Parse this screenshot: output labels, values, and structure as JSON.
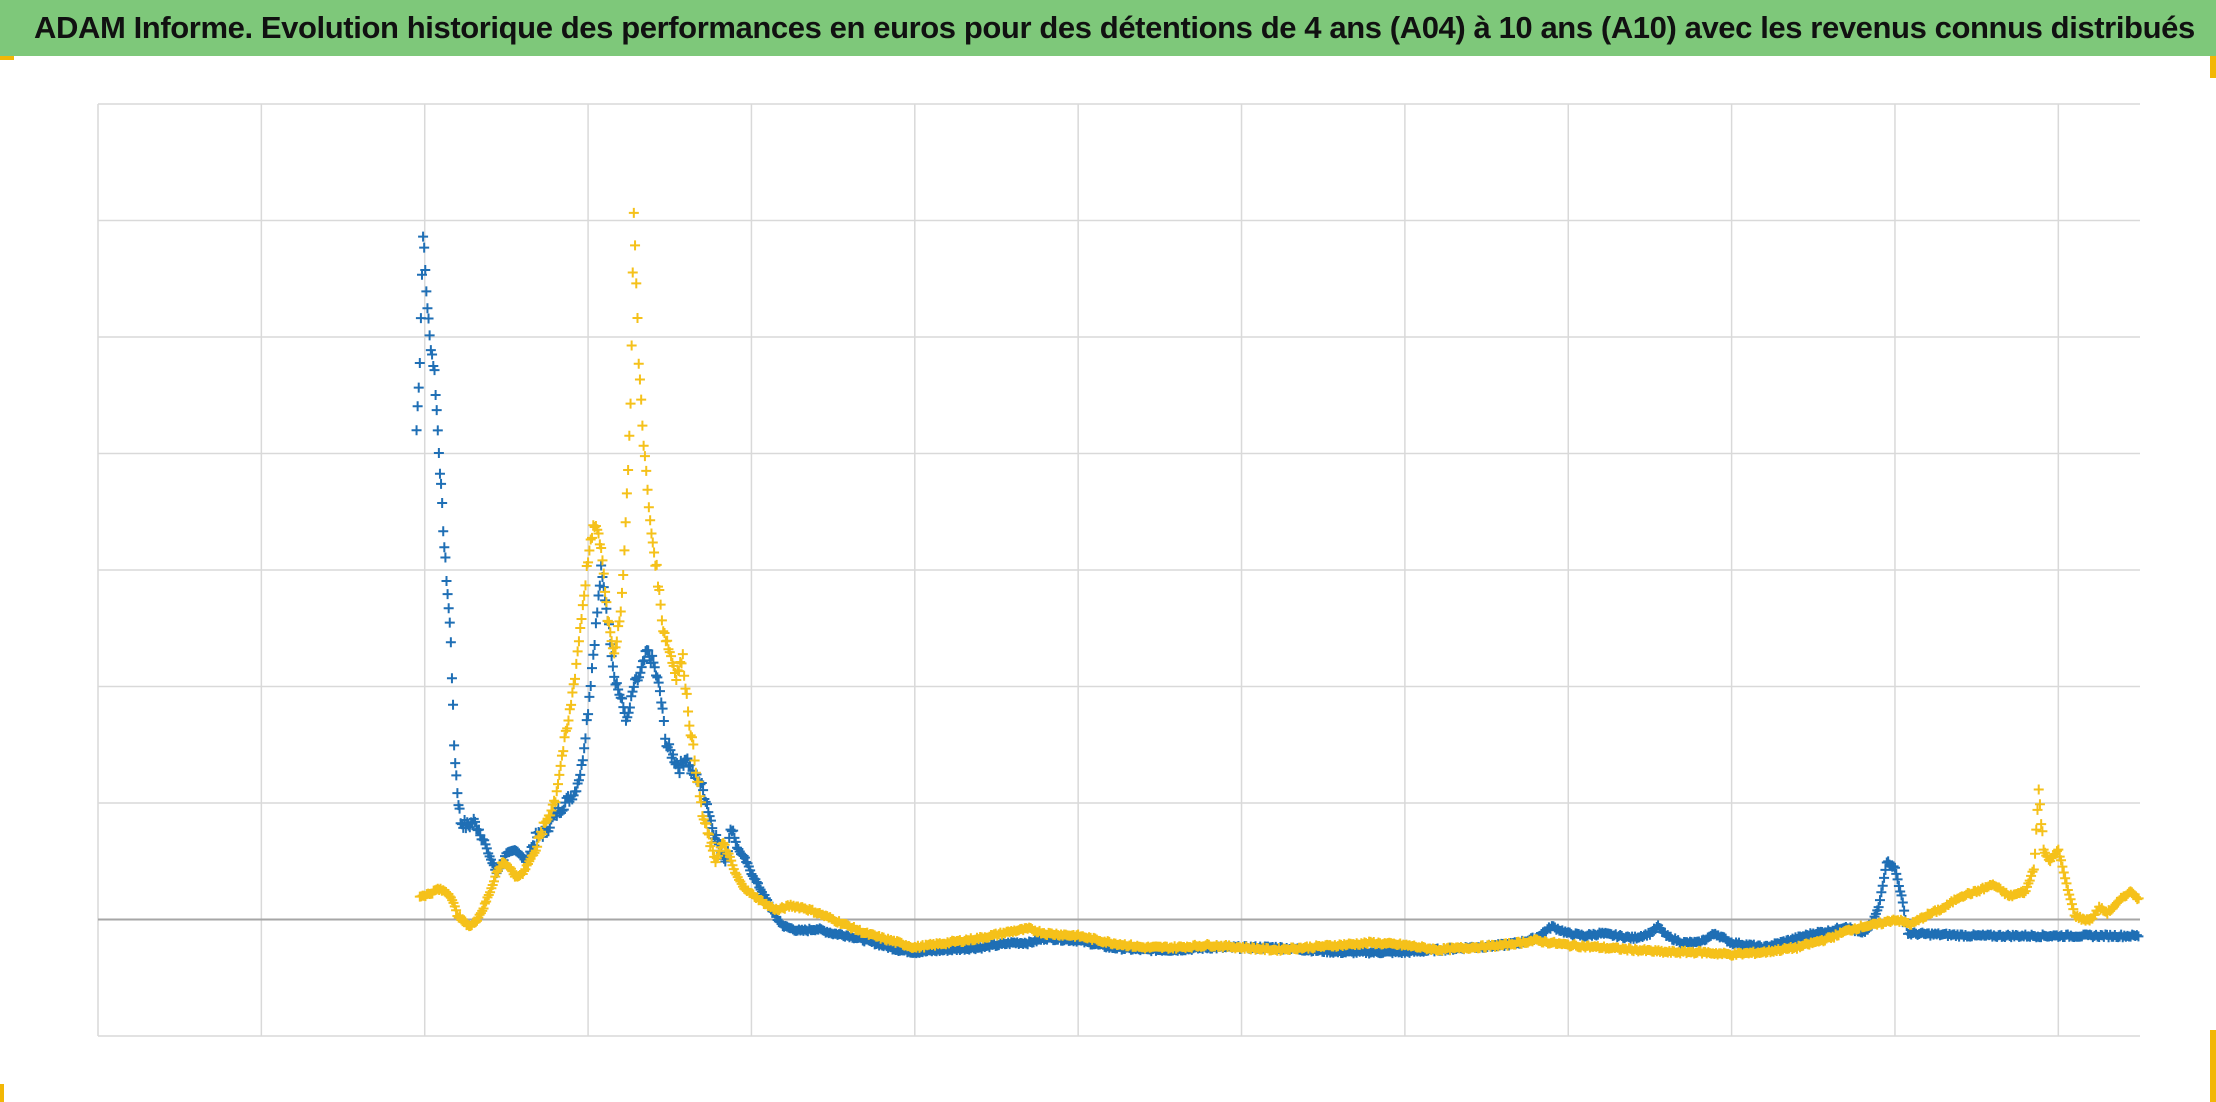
{
  "title": "ADAM Informe. Evolution historique des performances en euros pour des détentions de 4 ans (A04) à 10 ans (A10) avec les revenus connus distribués",
  "colors": {
    "title_background": "#7ec87a",
    "corner_accent": "#f2b705",
    "series_blue": "#1f6fb5",
    "series_yellow": "#f5c11a",
    "grid": "#d9d9d9",
    "zero_line": "#a6a6a6"
  },
  "chart_data": {
    "type": "scatter",
    "marker": "plus",
    "grid": true,
    "legend": "none",
    "xlim": [
      0,
      1250
    ],
    "ylim": [
      -0.5,
      3.5
    ],
    "x_gridlines": [
      0,
      100,
      200,
      300,
      400,
      500,
      600,
      700,
      800,
      900,
      1000,
      1100,
      1200
    ],
    "y_gridlines": [
      0,
      0.5,
      1,
      1.5,
      2,
      2.5,
      3,
      3.5
    ],
    "series": [
      {
        "color": "#1f6fb5",
        "anchors": [
          [
            195,
            2.1
          ],
          [
            197,
            2.4
          ],
          [
            199,
            2.95
          ],
          [
            201,
            2.7
          ],
          [
            203,
            2.5
          ],
          [
            206,
            2.35
          ],
          [
            208,
            2.1
          ],
          [
            210,
            1.85
          ],
          [
            212,
            1.6
          ],
          [
            214,
            1.4
          ],
          [
            216,
            1.2
          ],
          [
            218,
            0.75
          ],
          [
            220,
            0.55
          ],
          [
            222,
            0.42
          ],
          [
            226,
            0.4
          ],
          [
            230,
            0.42
          ],
          [
            234,
            0.38
          ],
          [
            238,
            0.3
          ],
          [
            244,
            0.2
          ],
          [
            250,
            0.28
          ],
          [
            256,
            0.3
          ],
          [
            262,
            0.25
          ],
          [
            268,
            0.35
          ],
          [
            274,
            0.38
          ],
          [
            280,
            0.45
          ],
          [
            286,
            0.5
          ],
          [
            292,
            0.55
          ],
          [
            296,
            0.65
          ],
          [
            300,
            0.9
          ],
          [
            304,
            1.2
          ],
          [
            308,
            1.5
          ],
          [
            312,
            1.3
          ],
          [
            316,
            1.05
          ],
          [
            320,
            0.95
          ],
          [
            324,
            0.85
          ],
          [
            328,
            1.0
          ],
          [
            332,
            1.05
          ],
          [
            336,
            1.15
          ],
          [
            340,
            1.1
          ],
          [
            344,
            0.98
          ],
          [
            348,
            0.75
          ],
          [
            352,
            0.7
          ],
          [
            356,
            0.65
          ],
          [
            360,
            0.7
          ],
          [
            364,
            0.62
          ],
          [
            368,
            0.6
          ],
          [
            372,
            0.52
          ],
          [
            376,
            0.4
          ],
          [
            380,
            0.32
          ],
          [
            384,
            0.25
          ],
          [
            388,
            0.4
          ],
          [
            392,
            0.3
          ],
          [
            396,
            0.26
          ],
          [
            400,
            0.2
          ],
          [
            404,
            0.15
          ],
          [
            408,
            0.1
          ],
          [
            412,
            0.05
          ],
          [
            416,
            0.0
          ],
          [
            420,
            -0.03
          ],
          [
            430,
            -0.05
          ],
          [
            440,
            -0.04
          ],
          [
            450,
            -0.06
          ],
          [
            460,
            -0.07
          ],
          [
            470,
            -0.09
          ],
          [
            480,
            -0.11
          ],
          [
            490,
            -0.13
          ],
          [
            500,
            -0.14
          ],
          [
            520,
            -0.13
          ],
          [
            540,
            -0.12
          ],
          [
            560,
            -0.1
          ],
          [
            570,
            -0.1
          ],
          [
            580,
            -0.08
          ],
          [
            600,
            -0.09
          ],
          [
            620,
            -0.12
          ],
          [
            640,
            -0.13
          ],
          [
            660,
            -0.13
          ],
          [
            680,
            -0.12
          ],
          [
            700,
            -0.12
          ],
          [
            720,
            -0.12
          ],
          [
            740,
            -0.13
          ],
          [
            760,
            -0.14
          ],
          [
            780,
            -0.14
          ],
          [
            800,
            -0.14
          ],
          [
            820,
            -0.13
          ],
          [
            840,
            -0.12
          ],
          [
            860,
            -0.11
          ],
          [
            870,
            -0.1
          ],
          [
            880,
            -0.08
          ],
          [
            890,
            -0.03
          ],
          [
            900,
            -0.06
          ],
          [
            910,
            -0.07
          ],
          [
            920,
            -0.06
          ],
          [
            930,
            -0.07
          ],
          [
            940,
            -0.08
          ],
          [
            950,
            -0.06
          ],
          [
            955,
            -0.03
          ],
          [
            960,
            -0.07
          ],
          [
            970,
            -0.1
          ],
          [
            980,
            -0.1
          ],
          [
            990,
            -0.06
          ],
          [
            1000,
            -0.1
          ],
          [
            1010,
            -0.11
          ],
          [
            1020,
            -0.12
          ],
          [
            1030,
            -0.1
          ],
          [
            1040,
            -0.08
          ],
          [
            1050,
            -0.06
          ],
          [
            1060,
            -0.05
          ],
          [
            1070,
            -0.03
          ],
          [
            1080,
            -0.06
          ],
          [
            1085,
            -0.03
          ],
          [
            1090,
            0.05
          ],
          [
            1095,
            0.25
          ],
          [
            1100,
            0.22
          ],
          [
            1104,
            0.1
          ],
          [
            1108,
            -0.06
          ],
          [
            1150,
            -0.07
          ],
          [
            1200,
            -0.07
          ],
          [
            1250,
            -0.07
          ]
        ]
      },
      {
        "color": "#f5c11a",
        "anchors": [
          [
            197,
            0.1
          ],
          [
            203,
            0.11
          ],
          [
            208,
            0.13
          ],
          [
            213,
            0.12
          ],
          [
            216,
            0.1
          ],
          [
            220,
            0.02
          ],
          [
            224,
            -0.01
          ],
          [
            228,
            -0.03
          ],
          [
            232,
            0.0
          ],
          [
            236,
            0.05
          ],
          [
            240,
            0.12
          ],
          [
            244,
            0.2
          ],
          [
            248,
            0.25
          ],
          [
            252,
            0.22
          ],
          [
            256,
            0.18
          ],
          [
            260,
            0.2
          ],
          [
            264,
            0.25
          ],
          [
            268,
            0.3
          ],
          [
            272,
            0.38
          ],
          [
            276,
            0.45
          ],
          [
            280,
            0.52
          ],
          [
            284,
            0.7
          ],
          [
            288,
            0.85
          ],
          [
            292,
            1.05
          ],
          [
            296,
            1.3
          ],
          [
            300,
            1.55
          ],
          [
            304,
            1.7
          ],
          [
            308,
            1.6
          ],
          [
            312,
            1.3
          ],
          [
            316,
            1.15
          ],
          [
            320,
            1.3
          ],
          [
            323,
            1.7
          ],
          [
            326,
            2.2
          ],
          [
            328,
            3.05
          ],
          [
            331,
            2.4
          ],
          [
            334,
            2.05
          ],
          [
            338,
            1.7
          ],
          [
            342,
            1.5
          ],
          [
            346,
            1.25
          ],
          [
            350,
            1.15
          ],
          [
            354,
            1.05
          ],
          [
            358,
            1.12
          ],
          [
            362,
            0.85
          ],
          [
            366,
            0.65
          ],
          [
            370,
            0.45
          ],
          [
            374,
            0.35
          ],
          [
            378,
            0.25
          ],
          [
            382,
            0.32
          ],
          [
            386,
            0.28
          ],
          [
            390,
            0.2
          ],
          [
            394,
            0.15
          ],
          [
            398,
            0.12
          ],
          [
            402,
            0.1
          ],
          [
            406,
            0.08
          ],
          [
            410,
            0.06
          ],
          [
            416,
            0.04
          ],
          [
            424,
            0.06
          ],
          [
            432,
            0.05
          ],
          [
            440,
            0.03
          ],
          [
            450,
            0.0
          ],
          [
            460,
            -0.03
          ],
          [
            470,
            -0.06
          ],
          [
            480,
            -0.08
          ],
          [
            490,
            -0.1
          ],
          [
            500,
            -0.12
          ],
          [
            520,
            -0.1
          ],
          [
            540,
            -0.08
          ],
          [
            560,
            -0.05
          ],
          [
            570,
            -0.04
          ],
          [
            580,
            -0.06
          ],
          [
            600,
            -0.07
          ],
          [
            620,
            -0.1
          ],
          [
            640,
            -0.12
          ],
          [
            660,
            -0.12
          ],
          [
            680,
            -0.11
          ],
          [
            700,
            -0.12
          ],
          [
            720,
            -0.13
          ],
          [
            740,
            -0.12
          ],
          [
            760,
            -0.11
          ],
          [
            780,
            -0.1
          ],
          [
            800,
            -0.11
          ],
          [
            820,
            -0.13
          ],
          [
            840,
            -0.12
          ],
          [
            860,
            -0.11
          ],
          [
            880,
            -0.09
          ],
          [
            900,
            -0.11
          ],
          [
            920,
            -0.12
          ],
          [
            940,
            -0.13
          ],
          [
            960,
            -0.14
          ],
          [
            980,
            -0.14
          ],
          [
            1000,
            -0.15
          ],
          [
            1020,
            -0.14
          ],
          [
            1040,
            -0.12
          ],
          [
            1060,
            -0.08
          ],
          [
            1070,
            -0.05
          ],
          [
            1080,
            -0.03
          ],
          [
            1090,
            -0.02
          ],
          [
            1100,
            0.0
          ],
          [
            1110,
            -0.02
          ],
          [
            1120,
            0.02
          ],
          [
            1130,
            0.05
          ],
          [
            1140,
            0.1
          ],
          [
            1150,
            0.12
          ],
          [
            1160,
            0.15
          ],
          [
            1170,
            0.1
          ],
          [
            1180,
            0.12
          ],
          [
            1185,
            0.22
          ],
          [
            1188,
            0.55
          ],
          [
            1191,
            0.3
          ],
          [
            1195,
            0.25
          ],
          [
            1200,
            0.3
          ],
          [
            1205,
            0.15
          ],
          [
            1210,
            0.02
          ],
          [
            1215,
            0.0
          ],
          [
            1220,
            0.0
          ],
          [
            1225,
            0.05
          ],
          [
            1230,
            0.03
          ],
          [
            1235,
            0.06
          ],
          [
            1240,
            0.1
          ],
          [
            1245,
            0.12
          ],
          [
            1250,
            0.08
          ]
        ]
      }
    ]
  }
}
